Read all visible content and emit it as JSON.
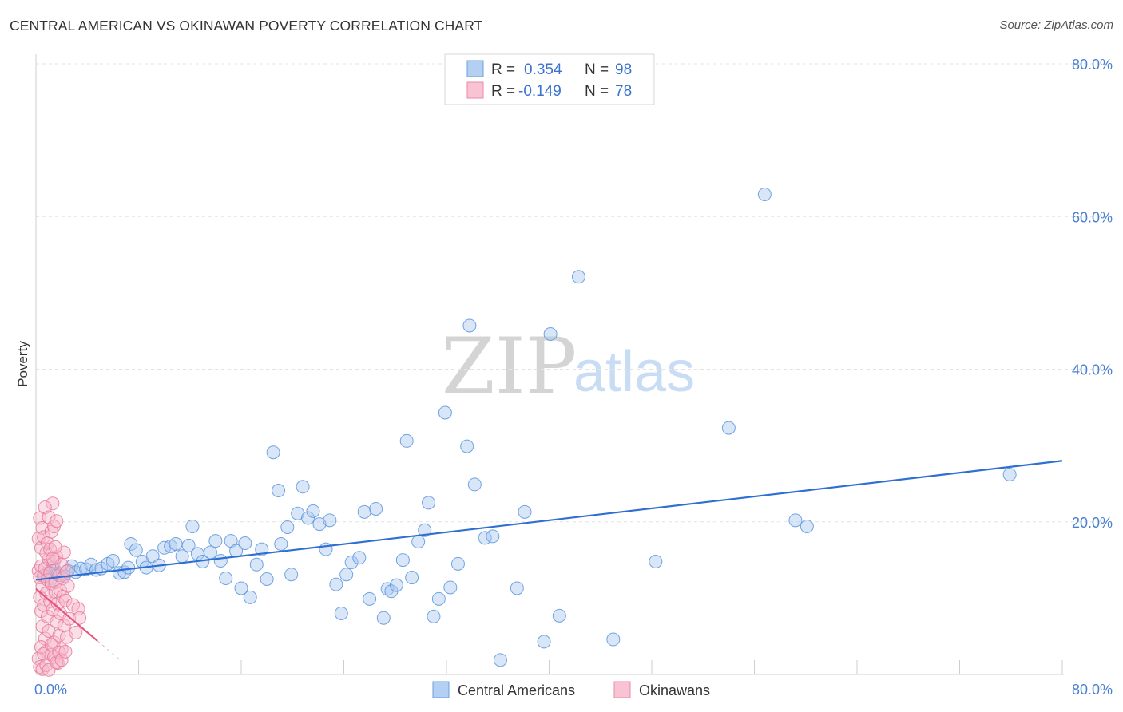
{
  "title": "CENTRAL AMERICAN VS OKINAWAN POVERTY CORRELATION CHART",
  "source": "Source: ZipAtlas.com",
  "watermark": {
    "zip": "ZIP",
    "atlas": "atlas"
  },
  "colors": {
    "blue": "#5b95dd",
    "blue_fill": "#a9c8f0",
    "blue_line": "#2f6fd1",
    "pink": "#e8799a",
    "pink_fill": "#f6b8cc",
    "pink_line": "#e4557f"
  },
  "legend": {
    "rows": [
      {
        "r_label": "R =",
        "r_value": "0.354",
        "n_label": "N =",
        "n_value": "98"
      },
      {
        "r_label": "R =",
        "r_value": "-0.149",
        "n_label": "N =",
        "n_value": "78"
      }
    ]
  },
  "bottom_legend": {
    "series1": "Central Americans",
    "series2": "Okinawans"
  },
  "chart_data": {
    "type": "scatter",
    "title": "CENTRAL AMERICAN VS OKINAWAN POVERTY CORRELATION CHART",
    "xlabel": "",
    "ylabel": "Poverty",
    "xlim": [
      0,
      80
    ],
    "ylim": [
      0,
      80
    ],
    "x_tick_labels": {
      "min": "0.0%",
      "max": "80.0%"
    },
    "y_ticks": [
      {
        "value": 20,
        "label": "20.0%"
      },
      {
        "value": 40,
        "label": "40.0%"
      },
      {
        "value": 60,
        "label": "60.0%"
      },
      {
        "value": 80,
        "label": "80.0%"
      }
    ],
    "grid": true,
    "series": [
      {
        "name": "Central Americans",
        "r": 0.354,
        "n": 98,
        "trendline": {
          "x0": 0,
          "y0": 12.4,
          "x1": 80,
          "y1": 28.0
        },
        "points": [
          [
            0.7,
            12.9
          ],
          [
            0.9,
            13.3
          ],
          [
            1.1,
            12.3
          ],
          [
            1.3,
            14.0
          ],
          [
            1.5,
            13.6
          ],
          [
            1.7,
            13.2
          ],
          [
            2.2,
            12.9
          ],
          [
            2.5,
            13.6
          ],
          [
            2.8,
            14.2
          ],
          [
            3.1,
            13.4
          ],
          [
            3.5,
            13.9
          ],
          [
            3.9,
            13.8
          ],
          [
            4.3,
            14.4
          ],
          [
            4.7,
            13.7
          ],
          [
            5.1,
            13.9
          ],
          [
            5.6,
            14.5
          ],
          [
            6.0,
            14.9
          ],
          [
            6.5,
            13.3
          ],
          [
            6.9,
            13.4
          ],
          [
            7.2,
            14.0
          ],
          [
            7.4,
            17.1
          ],
          [
            7.8,
            16.3
          ],
          [
            8.3,
            14.8
          ],
          [
            8.6,
            14.0
          ],
          [
            9.1,
            15.5
          ],
          [
            9.6,
            14.3
          ],
          [
            10.0,
            16.6
          ],
          [
            10.5,
            16.8
          ],
          [
            10.9,
            17.1
          ],
          [
            11.4,
            15.5
          ],
          [
            11.9,
            16.9
          ],
          [
            12.2,
            19.4
          ],
          [
            12.6,
            15.8
          ],
          [
            13.0,
            14.8
          ],
          [
            13.6,
            16.0
          ],
          [
            14.0,
            17.5
          ],
          [
            14.4,
            14.9
          ],
          [
            14.8,
            12.6
          ],
          [
            15.2,
            17.5
          ],
          [
            15.6,
            16.2
          ],
          [
            16.0,
            11.3
          ],
          [
            16.3,
            17.2
          ],
          [
            16.7,
            10.1
          ],
          [
            17.2,
            14.4
          ],
          [
            17.6,
            16.4
          ],
          [
            18.0,
            12.5
          ],
          [
            18.5,
            29.1
          ],
          [
            18.9,
            24.1
          ],
          [
            19.1,
            17.1
          ],
          [
            19.6,
            19.3
          ],
          [
            19.9,
            13.1
          ],
          [
            20.4,
            21.1
          ],
          [
            20.8,
            24.6
          ],
          [
            21.2,
            20.5
          ],
          [
            21.6,
            21.4
          ],
          [
            22.1,
            19.7
          ],
          [
            22.6,
            16.4
          ],
          [
            22.9,
            20.2
          ],
          [
            23.4,
            11.8
          ],
          [
            23.8,
            8.0
          ],
          [
            24.2,
            13.1
          ],
          [
            24.6,
            14.7
          ],
          [
            25.2,
            15.3
          ],
          [
            25.6,
            21.3
          ],
          [
            26.0,
            9.9
          ],
          [
            26.5,
            21.7
          ],
          [
            27.1,
            7.4
          ],
          [
            27.4,
            11.2
          ],
          [
            27.7,
            10.9
          ],
          [
            28.1,
            11.7
          ],
          [
            28.6,
            15.0
          ],
          [
            28.9,
            30.6
          ],
          [
            29.3,
            12.7
          ],
          [
            29.8,
            17.4
          ],
          [
            30.3,
            18.9
          ],
          [
            30.6,
            22.5
          ],
          [
            31.0,
            7.6
          ],
          [
            31.4,
            9.9
          ],
          [
            31.9,
            34.3
          ],
          [
            32.3,
            11.4
          ],
          [
            32.9,
            14.5
          ],
          [
            33.6,
            29.9
          ],
          [
            33.8,
            45.7
          ],
          [
            34.2,
            24.9
          ],
          [
            35.0,
            17.9
          ],
          [
            35.6,
            18.1
          ],
          [
            36.2,
            1.9
          ],
          [
            37.5,
            11.3
          ],
          [
            38.1,
            21.3
          ],
          [
            39.6,
            4.3
          ],
          [
            40.1,
            44.6
          ],
          [
            40.8,
            7.7
          ],
          [
            42.3,
            52.1
          ],
          [
            45.0,
            4.6
          ],
          [
            48.3,
            14.8
          ],
          [
            54.0,
            32.3
          ],
          [
            56.8,
            62.9
          ],
          [
            59.2,
            20.2
          ],
          [
            60.1,
            19.4
          ],
          [
            75.9,
            26.2
          ]
        ]
      },
      {
        "name": "Okinawans",
        "r": -0.149,
        "n": 78,
        "trendline": {
          "x0": 0,
          "y0": 11.2,
          "x1": 4.8,
          "y1": 4.4,
          "dashed_to_x": 6.5
        },
        "points": [
          [
            0.2,
            13.6
          ],
          [
            0.3,
            12.7
          ],
          [
            0.3,
            10.1
          ],
          [
            0.4,
            14.2
          ],
          [
            0.4,
            8.3
          ],
          [
            0.5,
            11.5
          ],
          [
            0.5,
            6.3
          ],
          [
            0.6,
            12.9
          ],
          [
            0.6,
            9.1
          ],
          [
            0.7,
            4.7
          ],
          [
            0.7,
            13.9
          ],
          [
            0.8,
            10.6
          ],
          [
            0.8,
            3.0
          ],
          [
            0.9,
            12.4
          ],
          [
            0.9,
            7.6
          ],
          [
            1.0,
            15.1
          ],
          [
            1.0,
            5.7
          ],
          [
            1.1,
            9.6
          ],
          [
            1.1,
            13.3
          ],
          [
            1.2,
            2.6
          ],
          [
            1.2,
            11.9
          ],
          [
            1.3,
            8.5
          ],
          [
            1.3,
            22.4
          ],
          [
            1.4,
            14.8
          ],
          [
            1.4,
            4.2
          ],
          [
            1.5,
            10.8
          ],
          [
            1.5,
            12.1
          ],
          [
            1.6,
            6.9
          ],
          [
            1.6,
            15.4
          ],
          [
            1.7,
            9.3
          ],
          [
            1.7,
            1.5
          ],
          [
            1.8,
            13.0
          ],
          [
            1.8,
            5.1
          ],
          [
            1.9,
            11.0
          ],
          [
            1.9,
            8.0
          ],
          [
            2.0,
            14.4
          ],
          [
            2.0,
            3.3
          ],
          [
            2.1,
            12.6
          ],
          [
            2.1,
            10.2
          ],
          [
            2.2,
            16.0
          ],
          [
            2.2,
            6.4
          ],
          [
            2.3,
            9.7
          ],
          [
            2.4,
            13.5
          ],
          [
            2.4,
            4.9
          ],
          [
            2.5,
            11.6
          ],
          [
            0.2,
            17.8
          ],
          [
            0.3,
            20.5
          ],
          [
            0.4,
            16.6
          ],
          [
            0.5,
            19.2
          ],
          [
            0.6,
            18.0
          ],
          [
            0.7,
            21.9
          ],
          [
            0.8,
            15.9
          ],
          [
            0.9,
            17.2
          ],
          [
            1.0,
            20.6
          ],
          [
            1.1,
            16.4
          ],
          [
            1.2,
            18.7
          ],
          [
            1.3,
            15.2
          ],
          [
            1.4,
            19.4
          ],
          [
            1.5,
            16.7
          ],
          [
            1.6,
            20.1
          ],
          [
            0.2,
            2.1
          ],
          [
            0.3,
            1.0
          ],
          [
            0.4,
            3.6
          ],
          [
            0.5,
            0.7
          ],
          [
            0.6,
            2.7
          ],
          [
            0.8,
            1.2
          ],
          [
            1.0,
            0.6
          ],
          [
            1.2,
            3.9
          ],
          [
            1.4,
            2.3
          ],
          [
            1.6,
            1.6
          ],
          [
            1.8,
            2.9
          ],
          [
            2.0,
            1.9
          ],
          [
            2.3,
            3.0
          ],
          [
            2.6,
            7.3
          ],
          [
            2.9,
            9.1
          ],
          [
            3.1,
            5.5
          ],
          [
            3.3,
            8.6
          ],
          [
            3.4,
            7.4
          ]
        ]
      }
    ]
  }
}
